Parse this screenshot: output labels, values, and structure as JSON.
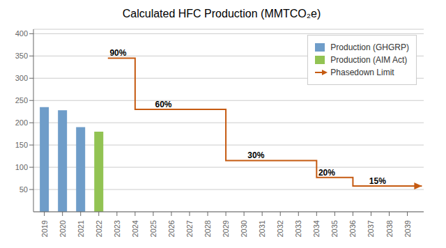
{
  "chart_data": {
    "type": "bar",
    "title": "Calculated HFC Production (MMTCO₂e)",
    "x": [
      2019,
      2020,
      2021,
      2022
    ],
    "series": [
      {
        "name": "Production (GHGRP)",
        "type": "bar",
        "color": "#6F9DC9",
        "values": [
          235,
          228,
          190,
          null
        ]
      },
      {
        "name": "Production (AIM Act)",
        "type": "bar",
        "color": "#92C353",
        "values": [
          null,
          null,
          null,
          180
        ]
      },
      {
        "name": "Phasedown Limit",
        "type": "line",
        "line_style": "step",
        "marker": "arrow",
        "color": "#C55A11",
        "x": [
          2022.5,
          2024,
          2029,
          2034,
          2036,
          2039.8
        ],
        "values": [
          345,
          230,
          115,
          77,
          58,
          58
        ]
      }
    ],
    "annotations": [
      {
        "text": "90%",
        "x": 2022.6,
        "y": 350
      },
      {
        "text": "60%",
        "x": 2025.1,
        "y": 235
      },
      {
        "text": "30%",
        "x": 2030.2,
        "y": 120
      },
      {
        "text": "20%",
        "x": 2034.1,
        "y": 82
      },
      {
        "text": "15%",
        "x": 2036.9,
        "y": 63
      }
    ],
    "xlim": [
      2018.4,
      2039.9
    ],
    "xticks": [
      2019,
      2020,
      2021,
      2022,
      2023,
      2024,
      2025,
      2026,
      2027,
      2028,
      2029,
      2030,
      2031,
      2032,
      2033,
      2034,
      2035,
      2036,
      2037,
      2038,
      2039
    ],
    "ylim": [
      0,
      410
    ],
    "yticks": [
      50,
      100,
      150,
      200,
      250,
      300,
      350,
      400
    ],
    "grid": true,
    "legend": "upper right"
  }
}
